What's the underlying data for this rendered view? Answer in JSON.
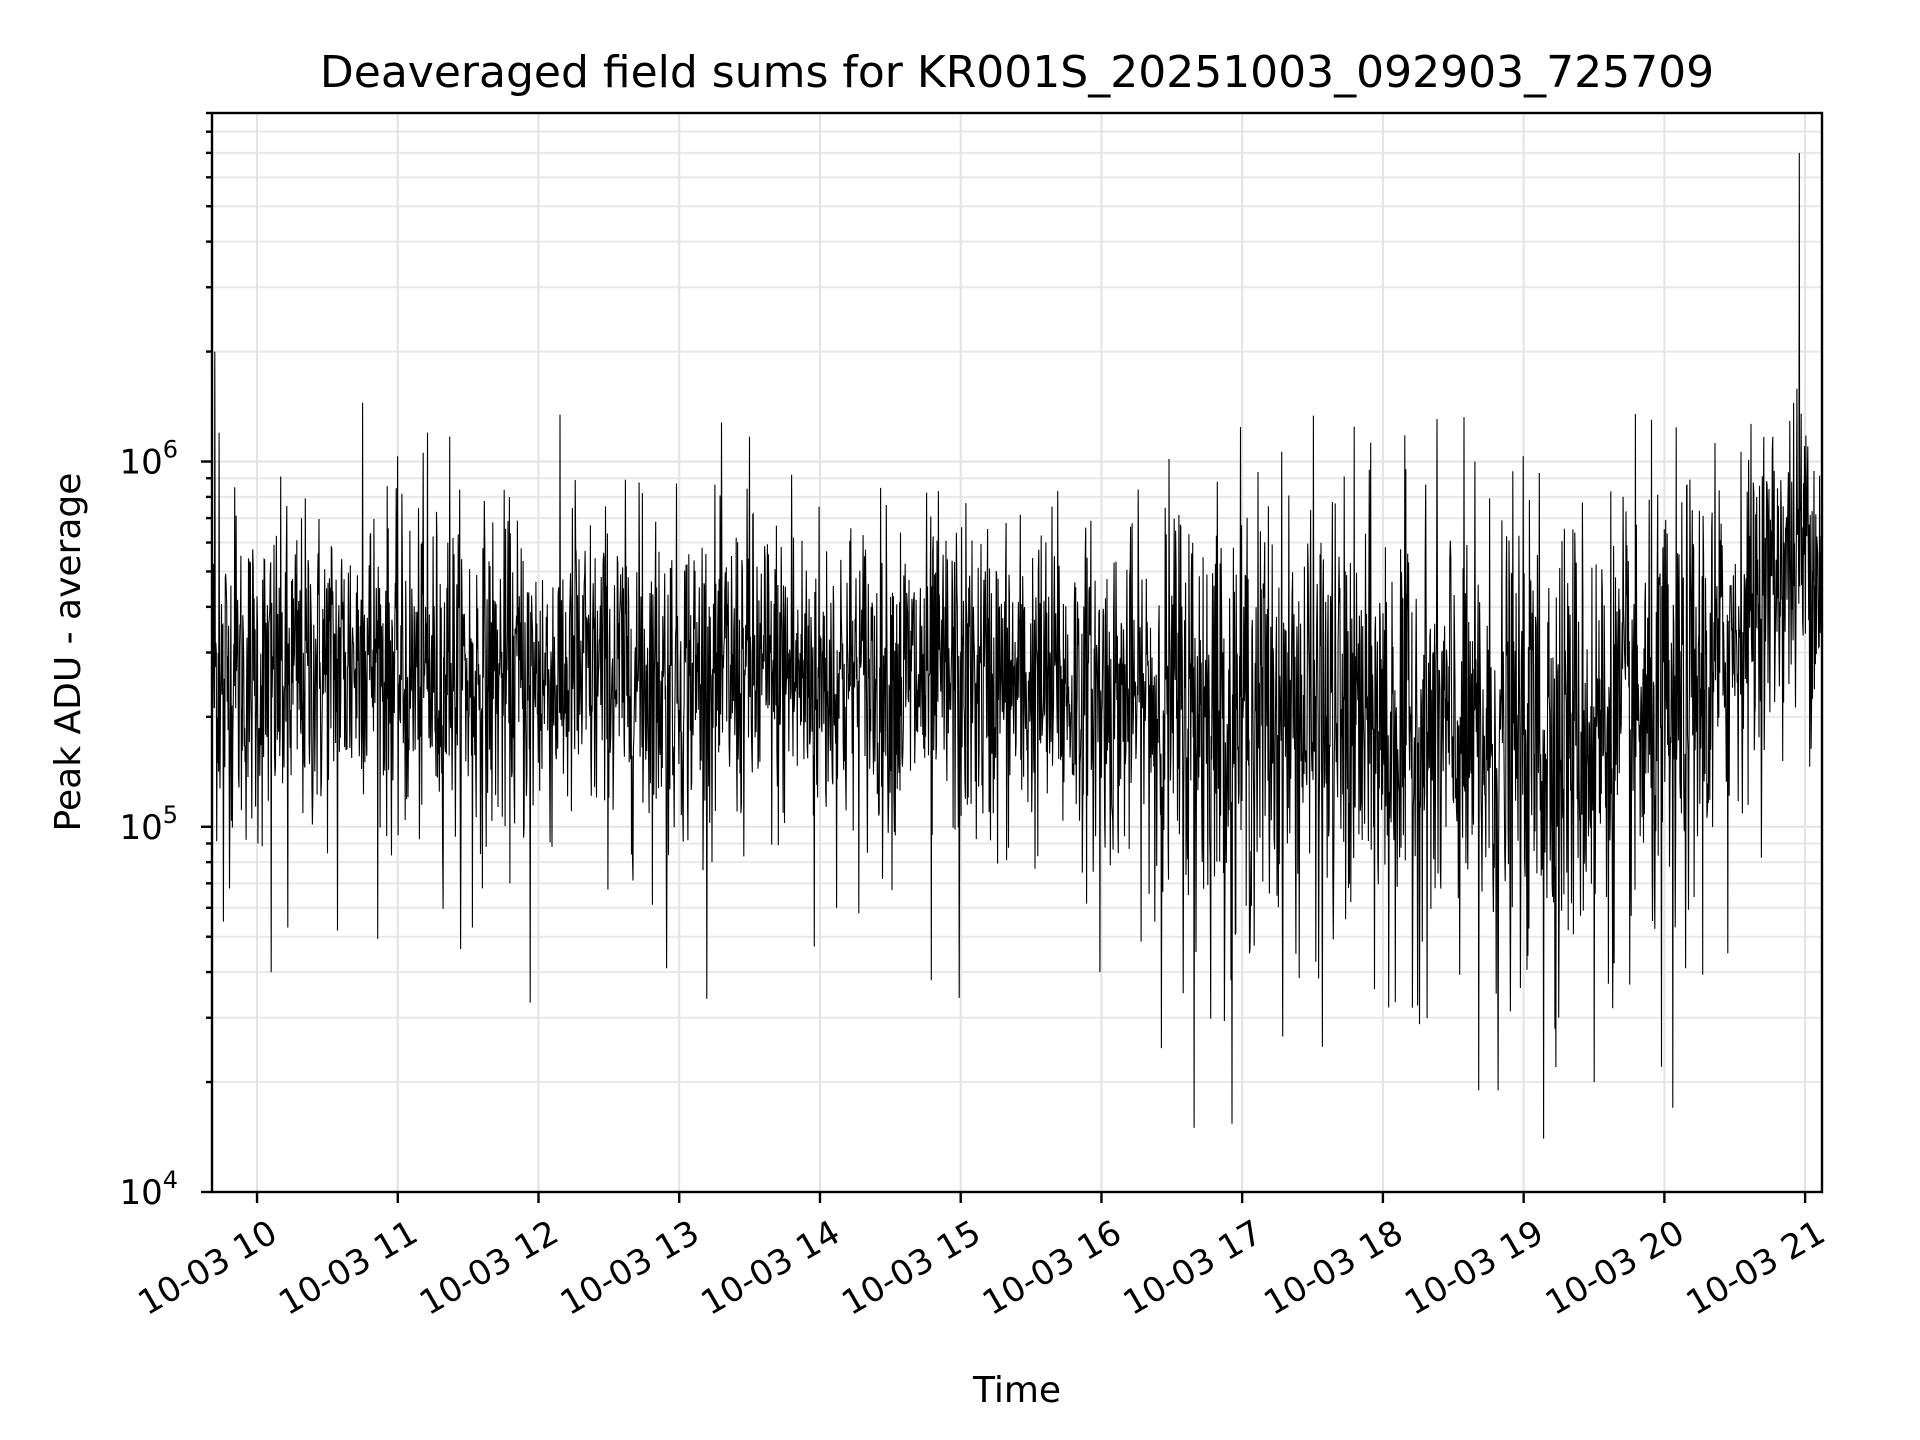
{
  "chart_data": {
    "type": "line",
    "title": "Deaveraged field sums for KR001S_20251003_092903_725709",
    "xlabel": "Time",
    "ylabel": "Peak ADU - average",
    "yscale": "log",
    "ylim": [
      10000,
      9000000
    ],
    "xlim_hours": [
      9.68,
      21.12
    ],
    "grid": true,
    "x_ticks": [
      {
        "value": 10,
        "label": "10-03 10"
      },
      {
        "value": 11,
        "label": "10-03 11"
      },
      {
        "value": 12,
        "label": "10-03 12"
      },
      {
        "value": 13,
        "label": "10-03 13"
      },
      {
        "value": 14,
        "label": "10-03 14"
      },
      {
        "value": 15,
        "label": "10-03 15"
      },
      {
        "value": 16,
        "label": "10-03 16"
      },
      {
        "value": 17,
        "label": "10-03 17"
      },
      {
        "value": 18,
        "label": "10-03 18"
      },
      {
        "value": 19,
        "label": "10-03 19"
      },
      {
        "value": 20,
        "label": "10-03 20"
      },
      {
        "value": 21,
        "label": "10-03 21"
      }
    ],
    "y_ticks": [
      {
        "value": 10000,
        "base": "10",
        "exp": "4"
      },
      {
        "value": 100000,
        "base": "10",
        "exp": "5"
      },
      {
        "value": 1000000,
        "base": "10",
        "exp": "6"
      }
    ],
    "series": [
      {
        "name": "field sums",
        "color": "#000000",
        "baseline": [
          [
            9.68,
            260000
          ],
          [
            10.0,
            250000
          ],
          [
            10.5,
            270000
          ],
          [
            10.8,
            300000
          ],
          [
            11.0,
            260000
          ],
          [
            12.0,
            255000
          ],
          [
            13.0,
            260000
          ],
          [
            14.0,
            255000
          ],
          [
            15.0,
            250000
          ],
          [
            15.5,
            240000
          ],
          [
            16.0,
            230000
          ],
          [
            16.5,
            215000
          ],
          [
            17.0,
            205000
          ],
          [
            17.5,
            200000
          ],
          [
            18.0,
            185000
          ],
          [
            18.8,
            165000
          ],
          [
            19.2,
            175000
          ],
          [
            19.6,
            185000
          ],
          [
            20.0,
            190000
          ],
          [
            20.3,
            240000
          ],
          [
            20.6,
            400000
          ],
          [
            20.8,
            500000
          ],
          [
            21.0,
            560000
          ],
          [
            21.12,
            520000
          ]
        ],
        "spikes": [
          [
            9.7,
            2000000
          ],
          [
            9.73,
            1200000
          ],
          [
            9.76,
            55000
          ],
          [
            9.84,
            850000
          ],
          [
            10.1,
            40000
          ],
          [
            10.22,
            53000
          ],
          [
            10.57,
            52000
          ],
          [
            10.75,
            1450000
          ],
          [
            11.21,
            1200000
          ],
          [
            11.37,
            1170000
          ],
          [
            11.53,
            53000
          ],
          [
            11.94,
            33000
          ],
          [
            12.26,
            890000
          ],
          [
            12.74,
            820000
          ],
          [
            12.91,
            41000
          ],
          [
            13.5,
            1170000
          ],
          [
            13.8,
            920000
          ],
          [
            13.96,
            47000
          ],
          [
            14.79,
            38000
          ],
          [
            14.99,
            34000
          ],
          [
            15.69,
            830000
          ],
          [
            15.99,
            40000
          ],
          [
            16.38,
            55000
          ],
          [
            16.66,
            15000
          ],
          [
            16.92,
            38000
          ],
          [
            17.57,
            25000
          ],
          [
            18.04,
            32000
          ],
          [
            18.68,
            19000
          ],
          [
            18.82,
            19000
          ],
          [
            19.11,
            930000
          ],
          [
            19.14,
            14000
          ],
          [
            19.25,
            30000
          ],
          [
            19.5,
            20000
          ],
          [
            19.98,
            22000
          ],
          [
            20.06,
            17000
          ],
          [
            20.45,
            45000
          ],
          [
            20.85,
            600000
          ],
          [
            20.96,
            7000000
          ],
          [
            21.02,
            1100000
          ]
        ]
      }
    ]
  }
}
